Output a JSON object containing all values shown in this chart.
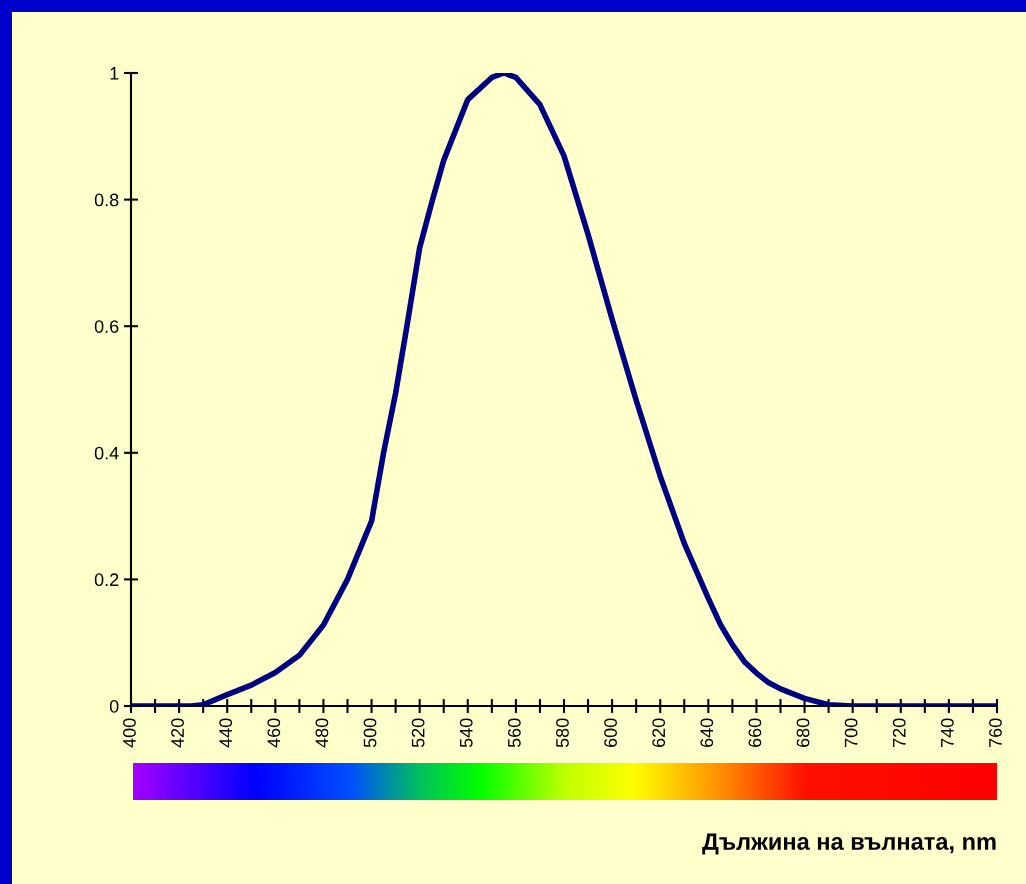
{
  "chart_data": {
    "type": "line",
    "xlabel": "Дължина на вълната, nm",
    "x": [
      400,
      410,
      420,
      425,
      430,
      440,
      450,
      460,
      470,
      480,
      490,
      500,
      505,
      510,
      515,
      520,
      525,
      530,
      540,
      550,
      555,
      560,
      570,
      580,
      590,
      600,
      610,
      620,
      630,
      640,
      645,
      650,
      655,
      660,
      665,
      670,
      680,
      690,
      700,
      720,
      740,
      760
    ],
    "series": [
      {
        "color": "#000080",
        "values": [
          0,
          0,
          0,
          0,
          0.002,
          0.018,
          0.033,
          0.053,
          0.08,
          0.128,
          0.2,
          0.292,
          0.4,
          0.494,
          0.607,
          0.724,
          0.795,
          0.862,
          0.958,
          0.993,
          1.0,
          0.993,
          0.95,
          0.869,
          0.745,
          0.611,
          0.483,
          0.363,
          0.257,
          0.17,
          0.129,
          0.097,
          0.07,
          0.052,
          0.037,
          0.027,
          0.012,
          0.002,
          0,
          0,
          0,
          0
        ]
      }
    ],
    "xlim": [
      400,
      760
    ],
    "ylim": [
      0,
      1
    ],
    "xticks": [
      400,
      420,
      440,
      460,
      480,
      500,
      520,
      540,
      560,
      580,
      600,
      620,
      640,
      660,
      680,
      700,
      720,
      740,
      760
    ],
    "yticks": [
      0,
      {
        "value": 0.2,
        "label": "0.2"
      },
      {
        "value": 0.4,
        "label": "0.4"
      },
      {
        "value": 0.6,
        "label": "0.6"
      },
      {
        "value": 0.8,
        "label": "0.8"
      },
      1
    ],
    "grid": false,
    "marker": "none",
    "line_style": "solid"
  }
}
